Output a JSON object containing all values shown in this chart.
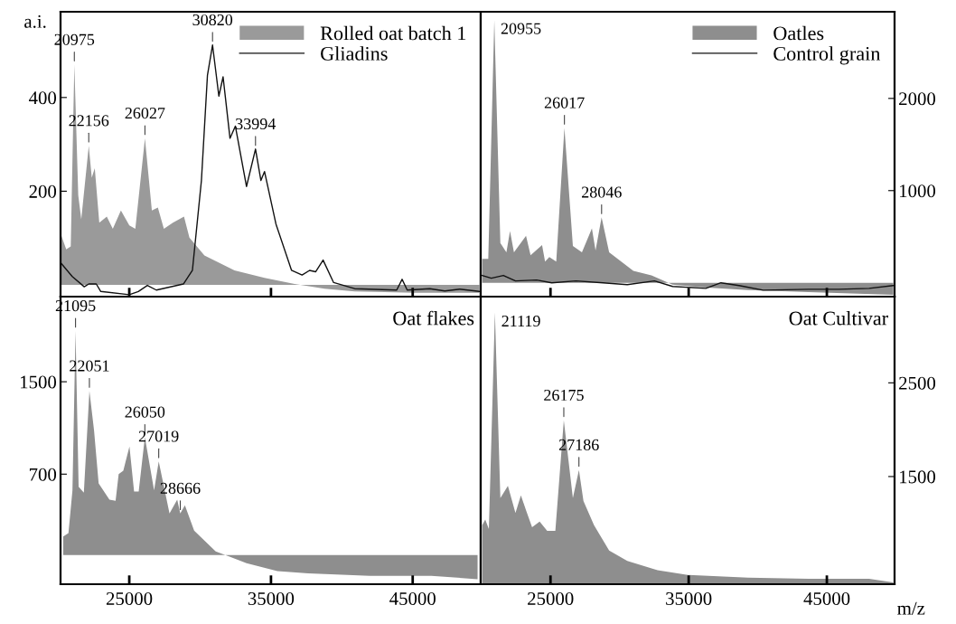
{
  "chart_data": [
    {
      "type": "area",
      "ylabel": "a.i.",
      "legend": "top right",
      "tick_labels": "y",
      "xlim": [
        20150,
        49800
      ],
      "xticks": [
        25000,
        35000,
        45000
      ],
      "ylim": [
        -25,
        583
      ],
      "yticks": [
        200,
        400
      ],
      "annotations": [
        {
          "text": "20975",
          "x": 21124,
          "y": 470
        },
        {
          "text": "22156",
          "x": 22142,
          "y": 297
        },
        {
          "text": "26027",
          "x": 26106,
          "y": 313
        },
        {
          "text": "30820",
          "x": 30876,
          "y": 512
        },
        {
          "text": "33994",
          "x": 33908,
          "y": 290
        }
      ],
      "series": [
        {
          "name": "Rolled oat batch 1",
          "color": "#9a9a9a",
          "x": [
            20170,
            20552,
            20870,
            21124,
            21400,
            21612,
            22142,
            22354,
            22566,
            22884,
            23414,
            23838,
            24410,
            25004,
            25428,
            26106,
            26594,
            27018,
            27442,
            28078,
            28862,
            29244,
            30304,
            32424,
            34544,
            36664,
            38784,
            40904,
            45144,
            49702
          ],
          "values": [
            108,
            76,
            82,
            470,
            191,
            140,
            297,
            229,
            249,
            133,
            146,
            120,
            159,
            127,
            120,
            313,
            159,
            165,
            120,
            133,
            146,
            101,
            63,
            31,
            15,
            2,
            -8,
            -14,
            -17,
            -17
          ]
        },
        {
          "name": "Gliadins",
          "type": "line",
          "color": "#111111",
          "x": [
            20170,
            20976,
            21824,
            22142,
            22672,
            22990,
            25004,
            25640,
            26276,
            26912,
            28820,
            29456,
            30092,
            30516,
            30876,
            31322,
            31620,
            32108,
            32486,
            33272,
            33908,
            34290,
            34544,
            35350,
            36452,
            37194,
            37724,
            38148,
            38678,
            39420,
            40904,
            43872,
            44253,
            44614,
            46204,
            47264,
            48324,
            49702
          ],
          "values": [
            47,
            18,
            -4,
            2,
            2,
            -14,
            -21,
            -14,
            -1,
            -11,
            2,
            31,
            223,
            447,
            512,
            403,
            444,
            313,
            339,
            210,
            290,
            223,
            242,
            130,
            31,
            21,
            31,
            28,
            53,
            5,
            -8,
            -11,
            12,
            -11,
            -8,
            -13,
            -9,
            -14
          ]
        }
      ]
    },
    {
      "type": "area",
      "legend": "top right",
      "tick_labels": "y",
      "xlim": [
        19950,
        49900
      ],
      "xticks": [
        25000,
        35000,
        45000
      ],
      "ylim": [
        -150,
        2940
      ],
      "yticks": [
        1000,
        2000
      ],
      "annotations": [
        {
          "text": "20955",
          "x": 20934,
          "y": 2850
        },
        {
          "text": "26017",
          "x": 26008,
          "y": 1680
        },
        {
          "text": "28046",
          "x": 28698,
          "y": 710
        }
      ],
      "series": [
        {
          "name": "Oatles",
          "color": "#8e8e8e",
          "x": [
            20059,
            20497,
            20934,
            21372,
            21809,
            22071,
            22356,
            23230,
            23559,
            24390,
            24608,
            24915,
            25417,
            26008,
            26620,
            27276,
            27998,
            28261,
            28698,
            29245,
            30120,
            30995,
            32307,
            33838,
            36025,
            39305,
            43679,
            49803
          ],
          "values": [
            260,
            260,
            2850,
            430,
            330,
            560,
            330,
            510,
            300,
            410,
            230,
            280,
            230,
            1680,
            400,
            330,
            590,
            350,
            710,
            330,
            230,
            130,
            80,
            -20,
            -50,
            -80,
            -100,
            -130
          ]
        },
        {
          "name": "Control grain",
          "type": "line",
          "color": "#111111",
          "x": [
            20059,
            20716,
            21590,
            22465,
            23996,
            25090,
            26839,
            28807,
            30557,
            32525,
            33838,
            36243,
            37337,
            38649,
            40398,
            43679,
            45866,
            48053,
            49803
          ],
          "values": [
            80,
            50,
            80,
            20,
            30,
            0,
            20,
            0,
            -20,
            20,
            -40,
            -60,
            0,
            -30,
            -80,
            -70,
            -70,
            -60,
            -30
          ]
        }
      ]
    },
    {
      "type": "area",
      "title": "Oat flakes",
      "xlim": [
        20150,
        49800
      ],
      "xticks": [
        25000,
        35000,
        45000
      ],
      "ylim": [
        -253,
        2237
      ],
      "yticks": [
        700,
        1500
      ],
      "annotations": [
        {
          "text": "21095",
          "x": 21208,
          "y": 1940
        },
        {
          "text": "22051",
          "x": 22187,
          "y": 1420
        },
        {
          "text": "26050",
          "x": 26100,
          "y": 1020
        },
        {
          "text": "27019",
          "x": 27078,
          "y": 810
        },
        {
          "text": "28666",
          "x": 28600,
          "y": 360
        }
      ],
      "series": [
        {
          "color": "#8e8e8e",
          "x": [
            20339,
            20708,
            20991,
            21208,
            21426,
            21795,
            22187,
            22513,
            22839,
            23600,
            24035,
            24252,
            24579,
            25013,
            25339,
            25665,
            26100,
            26752,
            27078,
            27839,
            28383,
            28600,
            28926,
            29578,
            31100,
            33274,
            35448,
            37622,
            41970,
            46318,
            49579
          ],
          "values": [
            160,
            190,
            560,
            1940,
            590,
            540,
            1420,
            1080,
            620,
            480,
            470,
            700,
            730,
            940,
            550,
            550,
            1020,
            560,
            810,
            360,
            480,
            360,
            430,
            210,
            30,
            -70,
            -140,
            -160,
            -180,
            -180,
            -210
          ]
        }
      ]
    },
    {
      "type": "area",
      "title": "Oat Cultivar",
      "xlabel": "m/z",
      "xlim": [
        19950,
        49900
      ],
      "xticks": [
        25000,
        35000,
        45000
      ],
      "ylim": [
        351,
        3420
      ],
      "yticks": [
        1500,
        2500
      ],
      "annotations": [
        {
          "text": "21119",
          "x": 20978,
          "y": 3250
        },
        {
          "text": "26175",
          "x": 25964,
          "y": 2100
        },
        {
          "text": "27186",
          "x": 27058,
          "y": 1570
        }
      ],
      "series": [
        {
          "color": "#8e8e8e",
          "x": [
            20059,
            20278,
            20541,
            20978,
            21372,
            21918,
            22465,
            22858,
            23230,
            23668,
            24215,
            24761,
            25352,
            25964,
            26620,
            27058,
            27386,
            28151,
            29245,
            30557,
            32744,
            34931,
            39305,
            43679,
            48053,
            49803
          ],
          "values": [
            980,
            1040,
            940,
            3250,
            1270,
            1400,
            1110,
            1300,
            1140,
            960,
            1020,
            920,
            920,
            2100,
            1270,
            1570,
            1240,
            980,
            710,
            600,
            500,
            450,
            420,
            410,
            410,
            370
          ]
        }
      ]
    }
  ]
}
